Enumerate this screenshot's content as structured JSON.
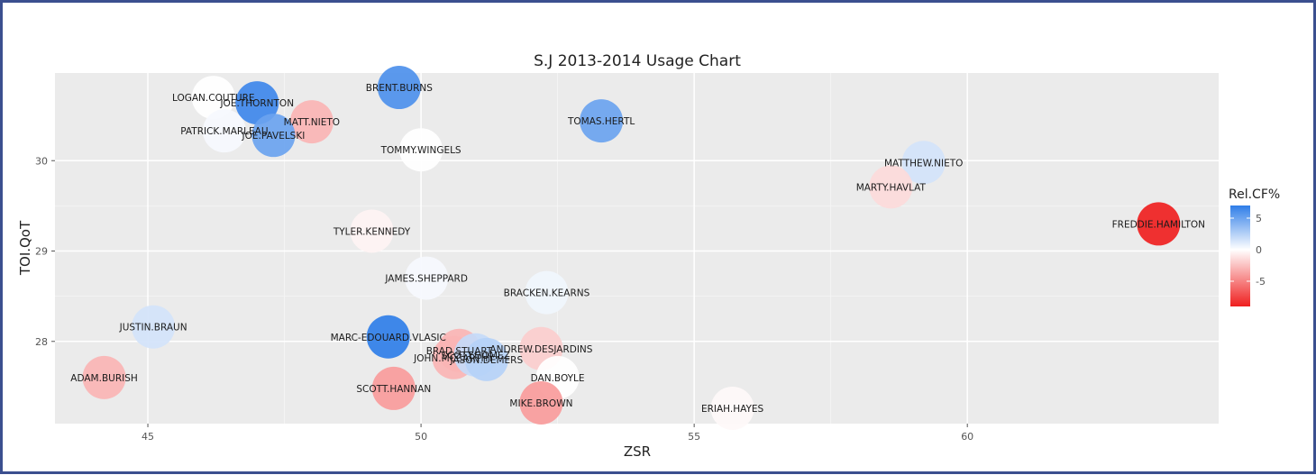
{
  "chart_data": {
    "type": "scatter",
    "title": "S.J 2013-2014 Usage Chart",
    "xlabel": "ZSR",
    "ylabel": "TOI.QoT",
    "xlim": [
      43.3,
      64.6
    ],
    "ylim": [
      27.09,
      30.97
    ],
    "x_ticks": [
      45,
      50,
      55,
      60
    ],
    "y_ticks": [
      28,
      29,
      30
    ],
    "legend": {
      "title": "Rel.CF%",
      "ticks": [
        5,
        0,
        -5
      ],
      "range": [
        -9,
        7
      ],
      "placement": "right"
    },
    "color_scale": {
      "low": "#ef1f1f",
      "mid": "#ffffff",
      "high": "#2f7ee8"
    },
    "grid": true,
    "points": [
      {
        "name": "LOGAN.COUTURE",
        "x": 46.2,
        "y": 30.7,
        "color_value": 0
      },
      {
        "name": "JOE.THORNTON",
        "x": 47.0,
        "y": 30.64,
        "color_value": 6.5
      },
      {
        "name": "BRENT.BURNS",
        "x": 49.6,
        "y": 30.81,
        "color_value": 6
      },
      {
        "name": "MATT.NIETO",
        "x": 48.0,
        "y": 30.43,
        "color_value": -3
      },
      {
        "name": "PATRICK.MARLEAU",
        "x": 46.4,
        "y": 30.33,
        "color_value": 0.3
      },
      {
        "name": "JOE.PAVELSKI",
        "x": 47.3,
        "y": 30.28,
        "color_value": 5
      },
      {
        "name": "TOMAS.HERTL",
        "x": 53.3,
        "y": 30.44,
        "color_value": 5
      },
      {
        "name": "TOMMY.WINGELS",
        "x": 50.0,
        "y": 30.12,
        "color_value": 0
      },
      {
        "name": "MATTHEW.NIETO",
        "x": 59.2,
        "y": 29.98,
        "color_value": 1.5
      },
      {
        "name": "MARTY.HAVLAT",
        "x": 58.6,
        "y": 29.71,
        "color_value": -1.5
      },
      {
        "name": "FREDDIE.HAMILTON",
        "x": 63.5,
        "y": 29.3,
        "color_value": -9
      },
      {
        "name": "TYLER.KENNEDY",
        "x": 49.1,
        "y": 29.22,
        "color_value": -0.5
      },
      {
        "name": "JAMES.SHEPPARD",
        "x": 50.1,
        "y": 28.7,
        "color_value": 0.3
      },
      {
        "name": "BRACKEN.KEARNS",
        "x": 52.3,
        "y": 28.54,
        "color_value": 0.5
      },
      {
        "name": "JUSTIN.BRAUN",
        "x": 45.1,
        "y": 28.16,
        "color_value": 1.5
      },
      {
        "name": "MARC-EDOUARD.VLASIC",
        "x": 49.4,
        "y": 28.05,
        "color_value": 7
      },
      {
        "name": "BRAD.STUART",
        "x": 50.7,
        "y": 27.9,
        "color_value": -3
      },
      {
        "name": "JOHN.MCCARTHY",
        "x": 50.6,
        "y": 27.82,
        "color_value": -3
      },
      {
        "name": "ANDREW.DESJARDINS",
        "x": 52.2,
        "y": 27.92,
        "color_value": -2
      },
      {
        "name": "SCOTT.GOMEZ",
        "x": 51.0,
        "y": 27.85,
        "color_value": 2
      },
      {
        "name": "JASON.DEMERS",
        "x": 51.2,
        "y": 27.8,
        "color_value": 2.5
      },
      {
        "name": "DAN.BOYLE",
        "x": 52.5,
        "y": 27.6,
        "color_value": 0
      },
      {
        "name": "ADAM.BURISH",
        "x": 44.2,
        "y": 27.6,
        "color_value": -3
      },
      {
        "name": "SCOTT.HANNAN",
        "x": 49.5,
        "y": 27.48,
        "color_value": -4
      },
      {
        "name": "MIKE.BROWN",
        "x": 52.2,
        "y": 27.32,
        "color_value": -4
      },
      {
        "name": "ERIAH.HAYES",
        "x": 55.7,
        "y": 27.26,
        "color_value": -0.3
      }
    ]
  }
}
